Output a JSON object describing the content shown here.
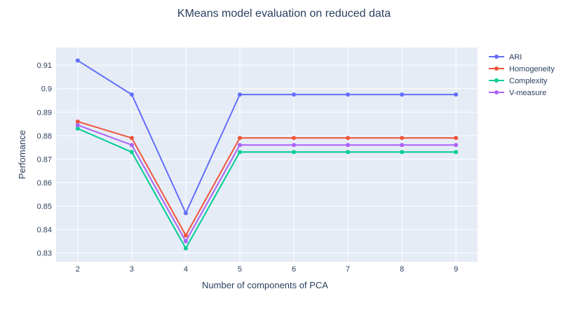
{
  "chart_data": {
    "type": "line",
    "title": "KMeans model evaluation on reduced data",
    "xlabel": "Number of components of PCA",
    "ylabel": "Perfomance",
    "x": [
      2,
      3,
      4,
      5,
      6,
      7,
      8,
      9
    ],
    "xlim": [
      1.6,
      9.4
    ],
    "ylim": [
      0.8263,
      0.9175
    ],
    "yticks": [
      0.83,
      0.84,
      0.85,
      0.86,
      0.87,
      0.88,
      0.89,
      0.9,
      0.91
    ],
    "ytick_labels": [
      "0.83",
      "0.84",
      "0.85",
      "0.86",
      "0.87",
      "0.88",
      "0.89",
      "0.9",
      "0.91"
    ],
    "grid": true,
    "plot_background": "#e5ecf6",
    "legend_position": "top-right",
    "series": [
      {
        "name": "ARI",
        "color": "#636efa",
        "values": [
          0.912,
          0.8975,
          0.847,
          0.8975,
          0.8975,
          0.8975,
          0.8975,
          0.8975
        ]
      },
      {
        "name": "Homogeneity",
        "color": "#ef553b",
        "values": [
          0.886,
          0.879,
          0.8375,
          0.879,
          0.879,
          0.879,
          0.879,
          0.879
        ]
      },
      {
        "name": "Complexity",
        "color": "#00cc96",
        "values": [
          0.883,
          0.873,
          0.832,
          0.873,
          0.873,
          0.873,
          0.873,
          0.873
        ]
      },
      {
        "name": "V-measure",
        "color": "#ab63fa",
        "values": [
          0.8845,
          0.876,
          0.835,
          0.876,
          0.876,
          0.876,
          0.876,
          0.876
        ]
      }
    ]
  }
}
